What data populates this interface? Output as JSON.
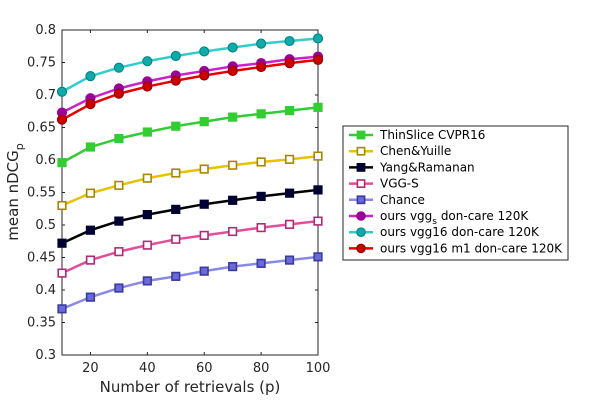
{
  "chart_data": {
    "type": "line",
    "title": "",
    "xlabel": "Number of retrievals (p)",
    "ylabel": "mean nDCG",
    "ylabel_subscript": "p",
    "xlim": [
      10,
      100
    ],
    "ylim": [
      0.3,
      0.8
    ],
    "x_ticks": [
      20,
      40,
      60,
      80,
      100
    ],
    "y_ticks": [
      0.3,
      0.35,
      0.4,
      0.45,
      0.5,
      0.55,
      0.6,
      0.65,
      0.7,
      0.75,
      0.8
    ],
    "grid": false,
    "legend_position": "right-outside",
    "x": [
      10,
      20,
      30,
      40,
      50,
      60,
      70,
      80,
      90,
      100
    ],
    "series": [
      {
        "name": "ThinSlice CVPR16",
        "line_color": "#33cc33",
        "marker": "square",
        "marker_face": "#33cc33",
        "marker_edge": "#33cc33",
        "values": [
          0.596,
          0.62,
          0.633,
          0.643,
          0.652,
          0.659,
          0.666,
          0.671,
          0.676,
          0.681
        ]
      },
      {
        "name": "Chen&Yuille",
        "line_color": "#e6c200",
        "marker": "square",
        "marker_face": "#ffffff",
        "marker_edge": "#a88700",
        "values": [
          0.53,
          0.549,
          0.561,
          0.572,
          0.58,
          0.586,
          0.592,
          0.597,
          0.601,
          0.606
        ]
      },
      {
        "name": "Yang&Ramanan",
        "line_color": "#000000",
        "marker": "square",
        "marker_face": "#000033",
        "marker_edge": "#000033",
        "values": [
          0.472,
          0.492,
          0.506,
          0.516,
          0.524,
          0.532,
          0.538,
          0.544,
          0.549,
          0.554
        ]
      },
      {
        "name": "VGG-S",
        "line_color": "#e0509a",
        "marker": "square",
        "marker_face": "#ffffff",
        "marker_edge": "#b02a77",
        "values": [
          0.426,
          0.446,
          0.459,
          0.469,
          0.478,
          0.484,
          0.49,
          0.496,
          0.501,
          0.506
        ]
      },
      {
        "name": "Chance",
        "line_color": "#8a8ae6",
        "marker": "square",
        "marker_face": "#6a6ad8",
        "marker_edge": "#3a3aa0",
        "values": [
          0.371,
          0.389,
          0.403,
          0.414,
          0.421,
          0.429,
          0.436,
          0.441,
          0.446,
          0.451
        ]
      },
      {
        "name": "ours vgg",
        "name_subscript": "s",
        "name_suffix": " don-care 120K",
        "line_color": "#cc22cc",
        "marker": "circle",
        "marker_face": "#990099",
        "marker_edge": "#990099",
        "values": [
          0.673,
          0.695,
          0.71,
          0.721,
          0.73,
          0.737,
          0.744,
          0.749,
          0.755,
          0.759
        ]
      },
      {
        "name": "ours vgg16 don-care 120K",
        "line_color": "#33cccc",
        "marker": "circle",
        "marker_face": "#11aaaa",
        "marker_edge": "#008888",
        "values": [
          0.705,
          0.729,
          0.742,
          0.752,
          0.76,
          0.767,
          0.773,
          0.779,
          0.783,
          0.787
        ]
      },
      {
        "name": "ours vgg16 m1 don-care 120K",
        "line_color": "#e60000",
        "marker": "circle",
        "marker_face": "#cc0000",
        "marker_edge": "#990000",
        "values": [
          0.662,
          0.686,
          0.702,
          0.713,
          0.722,
          0.73,
          0.737,
          0.743,
          0.749,
          0.754
        ]
      }
    ]
  }
}
